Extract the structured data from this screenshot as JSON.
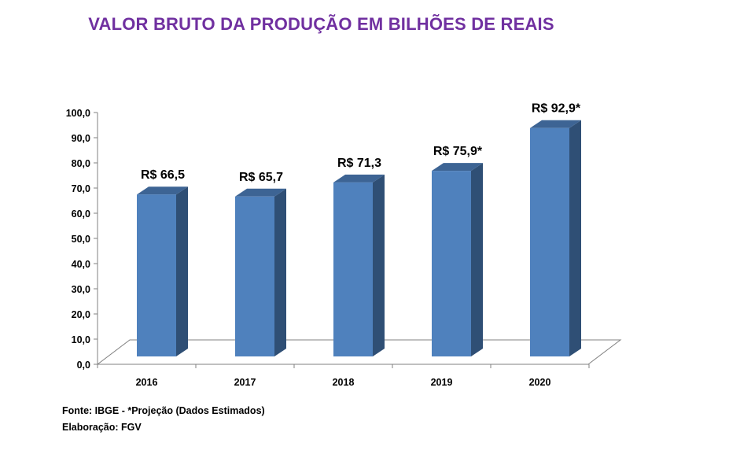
{
  "chart_data": {
    "type": "bar",
    "title": "VALOR BRUTO DA PRODUÇÃO EM BILHÕES DE REAIS",
    "categories": [
      "2016",
      "2017",
      "2018",
      "2019",
      "2020"
    ],
    "values": [
      66.5,
      65.7,
      71.3,
      75.9,
      92.9
    ],
    "data_labels": [
      "R$ 66,5",
      "R$ 65,7",
      "R$ 71,3",
      "R$ 75,9*",
      "R$ 92,9*"
    ],
    "y_ticks": [
      "0,0",
      "10,0",
      "20,0",
      "30,0",
      "40,0",
      "50,0",
      "60,0",
      "70,0",
      "80,0",
      "90,0",
      "100,0"
    ],
    "ylim": [
      0,
      100
    ],
    "xlabel": "",
    "ylabel": "",
    "grid": false,
    "legend": "none",
    "style": "3d-column",
    "colors": {
      "front": "#4f81bd",
      "side": "#2f4f75",
      "top": "#3d6494",
      "title": "#7030a0"
    }
  },
  "notes": {
    "source": "Fonte: IBGE  -  *Projeção (Dados Estimados)",
    "credit": "Elaboração: FGV"
  }
}
